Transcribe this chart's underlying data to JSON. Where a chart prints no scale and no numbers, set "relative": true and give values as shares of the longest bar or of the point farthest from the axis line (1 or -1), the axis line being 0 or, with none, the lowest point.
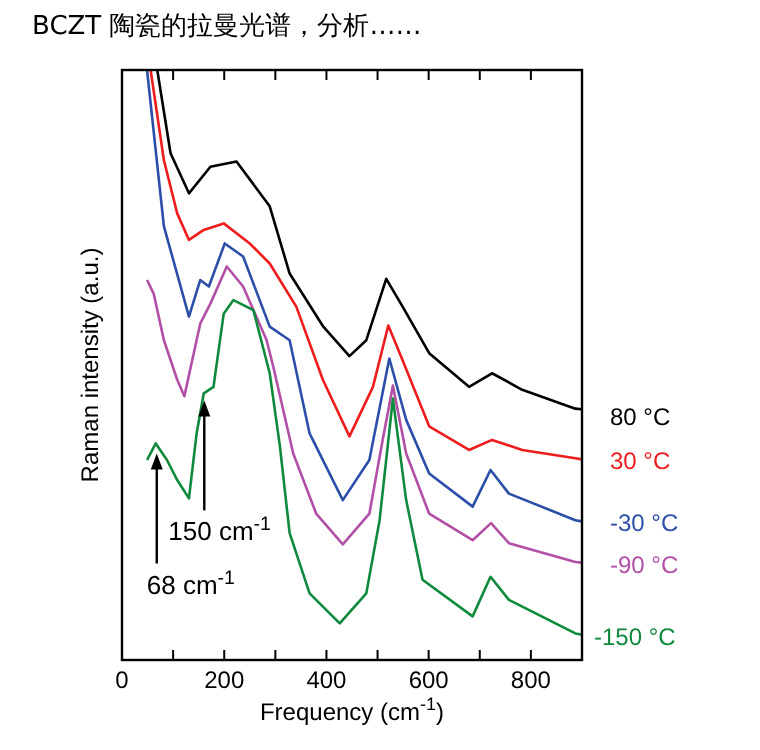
{
  "chart_data": {
    "type": "line",
    "title": "BCZT 陶瓷的拉曼光谱，分析……",
    "xlabel": "Frequency (cm$^{-1}$)",
    "ylabel": "Raman intensity (a.u.)",
    "relative": true,
    "xlim": [
      0,
      900
    ],
    "xticks": [
      0,
      {
        "value": 100,
        "label": null
      },
      200,
      {
        "value": 300,
        "label": null
      },
      400,
      {
        "value": 500,
        "label": null
      },
      600,
      {
        "value": 700,
        "label": null
      },
      800
    ],
    "grid": false,
    "marker": "none",
    "line_style": "solid",
    "series": [
      {
        "name": "80 °C",
        "color": "#000000",
        "x": [
          69,
          95,
          131,
          173,
          224,
          289,
          328,
          393,
          445,
          478,
          517,
          549,
          601,
          679,
          724,
          783,
          887,
          900
        ],
        "values": [
          1,
          0.859,
          0.791,
          0.836,
          0.845,
          0.769,
          0.655,
          0.566,
          0.515,
          0.542,
          0.646,
          0.599,
          0.52,
          0.463,
          0.486,
          0.458,
          0.426,
          0.425
        ]
      },
      {
        "name": "30 °C",
        "color": "#ee1c1c",
        "x": [
          56,
          82,
          108,
          131,
          160,
          199,
          250,
          289,
          341,
          393,
          445,
          491,
          521,
          549,
          601,
          679,
          724,
          783,
          887,
          900
        ],
        "values": [
          1,
          0.847,
          0.757,
          0.712,
          0.729,
          0.74,
          0.706,
          0.672,
          0.599,
          0.475,
          0.379,
          0.463,
          0.567,
          0.508,
          0.396,
          0.356,
          0.373,
          0.356,
          0.342,
          0.34
        ]
      },
      {
        "name": "-30 °C",
        "color": "#2b4ea8",
        "x": [
          49,
          82,
          131,
          153,
          170,
          201,
          237,
          289,
          328,
          367,
          432,
          484,
          523,
          556,
          601,
          686,
          721,
          757,
          887,
          900
        ],
        "values": [
          1,
          0.735,
          0.582,
          0.644,
          0.633,
          0.706,
          0.684,
          0.565,
          0.542,
          0.384,
          0.271,
          0.339,
          0.511,
          0.407,
          0.316,
          0.26,
          0.322,
          0.282,
          0.237,
          0.235
        ]
      },
      {
        "name": "-90 °C",
        "color": "#b24fa6",
        "x": [
          49,
          62,
          82,
          108,
          122,
          153,
          173,
          205,
          237,
          283,
          296,
          335,
          380,
          432,
          484,
          510,
          530,
          556,
          601,
          686,
          722,
          757,
          887,
          900
        ],
        "values": [
          0.644,
          0.621,
          0.542,
          0.475,
          0.447,
          0.57,
          0.604,
          0.667,
          0.633,
          0.542,
          0.497,
          0.35,
          0.248,
          0.196,
          0.248,
          0.373,
          0.465,
          0.35,
          0.248,
          0.203,
          0.232,
          0.198,
          0.166,
          0.165
        ]
      },
      {
        "name": "-150 °C",
        "color": "#0f8a3c",
        "x": [
          49,
          66,
          88,
          108,
          131,
          146,
          160,
          179,
          199,
          218,
          257,
          289,
          309,
          328,
          367,
          426,
          478,
          504,
          530,
          556,
          588,
          686,
          721,
          757,
          887,
          900
        ],
        "values": [
          0.339,
          0.367,
          0.339,
          0.305,
          0.274,
          0.384,
          0.452,
          0.463,
          0.587,
          0.61,
          0.593,
          0.486,
          0.362,
          0.215,
          0.113,
          0.062,
          0.113,
          0.237,
          0.443,
          0.271,
          0.136,
          0.074,
          0.141,
          0.102,
          0.045,
          0.043
        ]
      }
    ],
    "annotations": [
      {
        "text": "68 cm$^{-1}$",
        "x": 68,
        "y": 0.35
      },
      {
        "text": "150 cm$^{-1}$",
        "x": 161,
        "y": 0.44
      }
    ]
  }
}
